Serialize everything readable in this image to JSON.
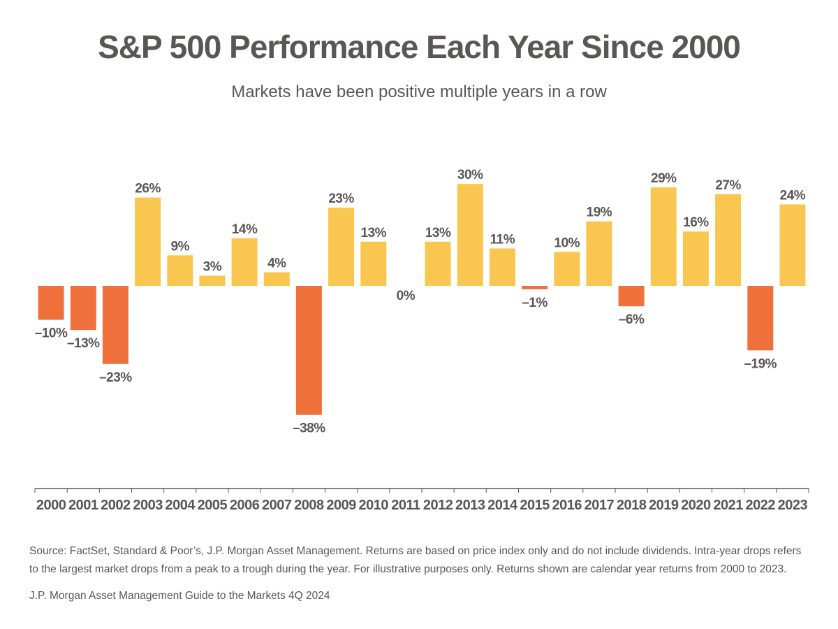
{
  "header": {
    "title": "S&P 500 Performance Each Year Since 2000",
    "subtitle": "Markets have been positive multiple years in a row"
  },
  "footer": {
    "source": "Source: FactSet, Standard & Poor’s, J.P. Morgan Asset Management. Returns are based on price index only and do not include dividends. Intra-year drops refers to the largest market drops from a peak to a trough during the year. For illustrative purposes only. Returns shown are calendar year returns from 2000 to 2023.",
    "citation": "J.P. Morgan Asset Management Guide to the Markets 4Q 2024"
  },
  "colors": {
    "positive": "#f9c74f",
    "negative": "#f0703c",
    "text": "#5b5656",
    "axis": "#5b5656"
  },
  "chart_data": {
    "type": "bar",
    "title": "S&P 500 Performance Each Year Since 2000",
    "subtitle": "Markets have been positive multiple years in a row",
    "xlabel": "",
    "ylabel": "",
    "ylim": [
      -64,
      40
    ],
    "grid": false,
    "legend": "none",
    "categories": [
      "2000",
      "2001",
      "2002",
      "2003",
      "2004",
      "2005",
      "2006",
      "2007",
      "2008",
      "2009",
      "2010",
      "2011",
      "2012",
      "2013",
      "2014",
      "2015",
      "2016",
      "2017",
      "2018",
      "2019",
      "2020",
      "2021",
      "2022",
      "2023"
    ],
    "values": [
      -10,
      -13,
      -23,
      26,
      9,
      3,
      14,
      4,
      -38,
      23,
      13,
      0,
      13,
      30,
      11,
      -1,
      10,
      19,
      -6,
      29,
      16,
      27,
      -19,
      24
    ],
    "labels": [
      "–10%",
      "–13%",
      "–23%",
      "26%",
      "9%",
      "3%",
      "14%",
      "4%",
      "–38%",
      "23%",
      "13%",
      "0%",
      "13%",
      "30%",
      "11%",
      "–1%",
      "10%",
      "19%",
      "–6%",
      "29%",
      "16%",
      "27%",
      "–19%",
      "24%"
    ]
  }
}
